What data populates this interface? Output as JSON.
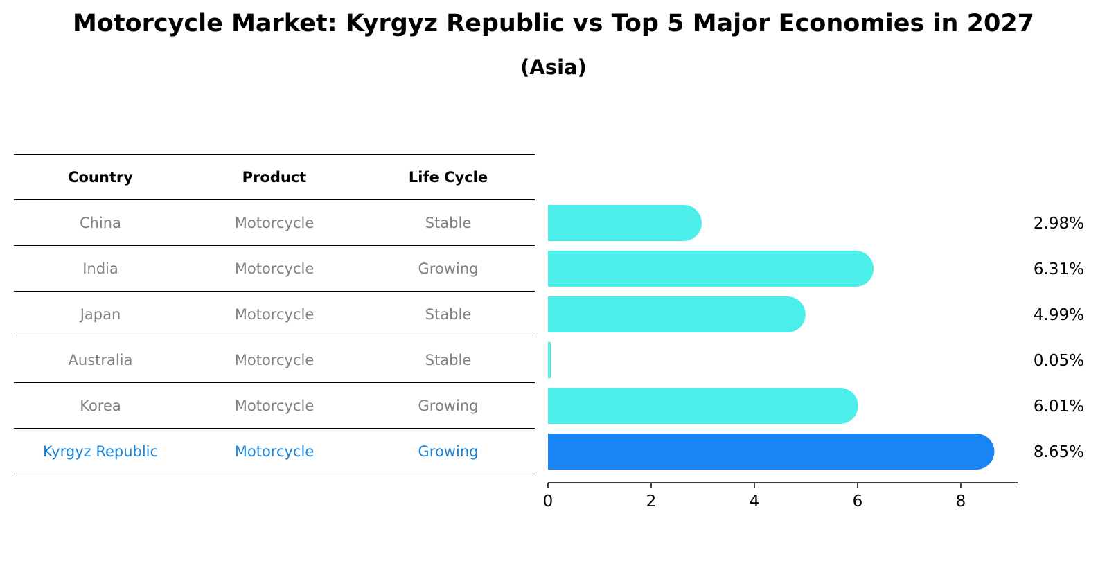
{
  "title": "Motorcycle Market: Kyrgyz Republic vs Top 5 Major Economies in 2027",
  "subtitle": "(Asia)",
  "table": {
    "headers": [
      "Country",
      "Product",
      "Life Cycle"
    ],
    "rows": [
      {
        "country": "China",
        "product": "Motorcycle",
        "life_cycle": "Stable"
      },
      {
        "country": "India",
        "product": "Motorcycle",
        "life_cycle": "Growing"
      },
      {
        "country": "Japan",
        "product": "Motorcycle",
        "life_cycle": "Stable"
      },
      {
        "country": "Australia",
        "product": "Motorcycle",
        "life_cycle": "Stable"
      },
      {
        "country": "Korea",
        "product": "Motorcycle",
        "life_cycle": "Growing"
      },
      {
        "country": "Kyrgyz Republic",
        "product": "Motorcycle",
        "life_cycle": "Growing"
      }
    ],
    "highlight_color": "#1a84d8",
    "row_text_color": "#808080"
  },
  "chart_data": {
    "type": "bar",
    "orientation": "horizontal",
    "categories": [
      "China",
      "India",
      "Japan",
      "Australia",
      "Korea",
      "Kyrgyz Republic"
    ],
    "values": [
      2.98,
      6.31,
      4.99,
      0.05,
      6.01,
      8.65
    ],
    "value_labels": [
      "2.98%",
      "6.31%",
      "4.99%",
      "0.05%",
      "6.01%",
      "8.65%"
    ],
    "highlight": "Kyrgyz Republic",
    "colors": {
      "default": "#4ceeea",
      "highlight": "#1a84f5"
    },
    "xticks": [
      0,
      2,
      4,
      6,
      8
    ],
    "xlim": [
      0,
      9.1
    ],
    "grid": false
  }
}
